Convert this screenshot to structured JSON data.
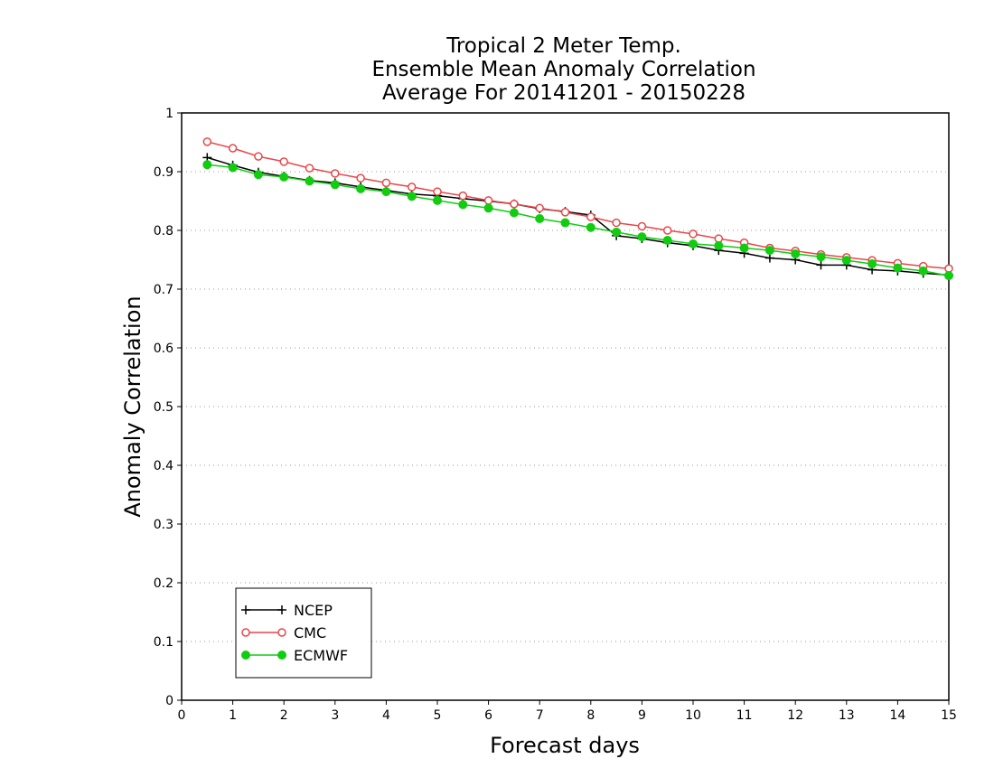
{
  "chart_data": {
    "type": "line",
    "title_lines": [
      "Tropical 2 Meter Temp.",
      "Ensemble Mean Anomaly Correlation",
      "Average For 20141201 - 20150228"
    ],
    "xlabel": "Forecast days",
    "ylabel": "Anomaly Correlation",
    "xlim": [
      0,
      15
    ],
    "ylim": [
      0,
      1
    ],
    "x_ticks": [
      "0",
      "1",
      "2",
      "3",
      "4",
      "5",
      "6",
      "7",
      "8",
      "9",
      "10",
      "11",
      "12",
      "13",
      "14",
      "15"
    ],
    "y_ticks": [
      "0",
      "0.1",
      "0.2",
      "0.3",
      "0.4",
      "0.5",
      "0.6",
      "0.7",
      "0.8",
      "0.9",
      "1"
    ],
    "grid": "horizontal dotted",
    "legend_position": "bottom-left",
    "x": [
      0.5,
      1,
      1.5,
      2,
      2.5,
      3,
      3.5,
      4,
      4.5,
      5,
      5.5,
      6,
      6.5,
      7,
      7.5,
      8,
      8.5,
      9,
      9.5,
      10,
      10.5,
      11,
      11.5,
      12,
      12.5,
      13,
      13.5,
      14,
      14.5,
      15
    ],
    "series": [
      {
        "name": "NCEP",
        "color": "#000000",
        "marker": "plus",
        "values": [
          0.924,
          0.911,
          0.899,
          0.892,
          0.885,
          0.881,
          0.874,
          0.868,
          0.862,
          0.859,
          0.854,
          0.85,
          0.845,
          0.837,
          0.832,
          0.826,
          0.791,
          0.786,
          0.779,
          0.774,
          0.766,
          0.761,
          0.753,
          0.75,
          0.741,
          0.741,
          0.733,
          0.731,
          0.727,
          0.724
        ]
      },
      {
        "name": "CMC",
        "color": "#e8474a",
        "marker": "open-circle",
        "values": [
          0.951,
          0.94,
          0.926,
          0.917,
          0.906,
          0.897,
          0.889,
          0.881,
          0.874,
          0.866,
          0.859,
          0.851,
          0.845,
          0.838,
          0.831,
          0.823,
          0.813,
          0.807,
          0.8,
          0.794,
          0.786,
          0.779,
          0.77,
          0.765,
          0.759,
          0.754,
          0.749,
          0.744,
          0.739,
          0.735
        ]
      },
      {
        "name": "ECMWF",
        "color": "#11cc11",
        "marker": "filled-circle",
        "values": [
          0.912,
          0.907,
          0.895,
          0.891,
          0.884,
          0.878,
          0.871,
          0.866,
          0.858,
          0.851,
          0.844,
          0.838,
          0.83,
          0.82,
          0.813,
          0.805,
          0.797,
          0.789,
          0.783,
          0.777,
          0.774,
          0.77,
          0.766,
          0.76,
          0.755,
          0.749,
          0.743,
          0.736,
          0.731,
          0.723
        ]
      }
    ]
  }
}
